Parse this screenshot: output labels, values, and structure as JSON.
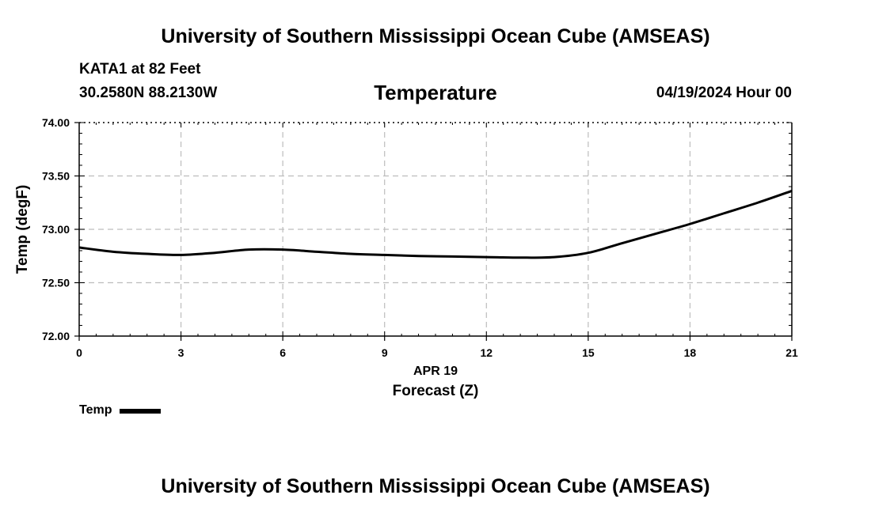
{
  "header": {
    "title": "University of Southern Mississippi Ocean Cube (AMSEAS)",
    "station": "KATA1 at 82 Feet",
    "coordinates": "30.2580N  88.2130W",
    "parameter": "Temperature",
    "date": "04/19/2024 Hour 00"
  },
  "footer": {
    "title": "University of Southern Mississippi Ocean Cube (AMSEAS)"
  },
  "legend": {
    "label": "Temp"
  },
  "colors": {
    "line": "#000000",
    "grid": "#bdbdbd",
    "background": "#ffffff"
  },
  "chart_data": {
    "type": "line",
    "title": "Temperature",
    "xlabel": "Forecast (Z)",
    "xlabel_date": "APR 19",
    "ylabel": "Temp (degF)",
    "xlim": [
      0,
      21
    ],
    "ylim": [
      72.0,
      74.0
    ],
    "xticks": [
      0,
      3,
      6,
      9,
      12,
      15,
      18,
      21
    ],
    "xtick_labels": [
      "0",
      "3",
      "6",
      "9",
      "12",
      "15",
      "18",
      "21"
    ],
    "yticks": [
      72.0,
      72.5,
      73.0,
      73.5,
      74.0
    ],
    "ytick_labels": [
      "72.00",
      "72.50",
      "73.00",
      "73.50",
      "74.00"
    ],
    "grid": true,
    "legend_position": "bottom-left",
    "series": [
      {
        "name": "Temp",
        "x": [
          0,
          1,
          2,
          3,
          4,
          5,
          6,
          7,
          8,
          9,
          10,
          11,
          12,
          13,
          14,
          15,
          16,
          17,
          18,
          19,
          20,
          21
        ],
        "values": [
          72.83,
          72.79,
          72.77,
          72.76,
          72.78,
          72.81,
          72.81,
          72.79,
          72.77,
          72.76,
          72.75,
          72.745,
          72.74,
          72.735,
          72.74,
          72.78,
          72.87,
          72.96,
          73.05,
          73.15,
          73.25,
          73.36
        ]
      }
    ]
  }
}
